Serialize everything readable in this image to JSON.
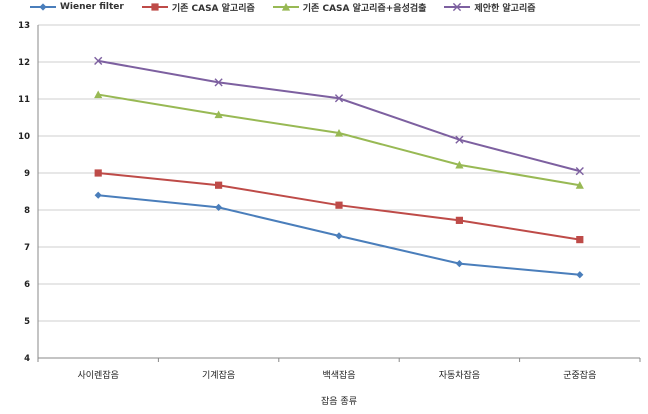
{
  "chart_data": {
    "type": "line",
    "xlabel": "잡음 종류",
    "ylabel": "",
    "ylim": [
      4,
      13
    ],
    "yticks": [
      4,
      5,
      6,
      7,
      8,
      9,
      10,
      11,
      12,
      13
    ],
    "categories": [
      "사이렌잡음",
      "기계잡음",
      "백색잡음",
      "자동차잡음",
      "군중잡음"
    ],
    "grid": "horizontal",
    "legend": "top",
    "series": [
      {
        "name": "Wiener filter",
        "color": "#4a7ebb",
        "marker": "diamond",
        "values": [
          8.4,
          8.07,
          7.3,
          6.55,
          6.25
        ]
      },
      {
        "name": "기존 CASA 알고리즘",
        "color": "#be4b48",
        "marker": "square",
        "values": [
          9.0,
          8.67,
          8.13,
          7.72,
          7.2
        ]
      },
      {
        "name": "기존 CASA 알고리즘+음성검출",
        "color": "#98b954",
        "marker": "triangle",
        "values": [
          11.12,
          10.58,
          10.08,
          9.22,
          8.67
        ]
      },
      {
        "name": "제안한 알고리즘",
        "color": "#7d60a0",
        "marker": "x",
        "values": [
          12.03,
          11.45,
          11.02,
          9.9,
          9.05
        ]
      }
    ]
  }
}
